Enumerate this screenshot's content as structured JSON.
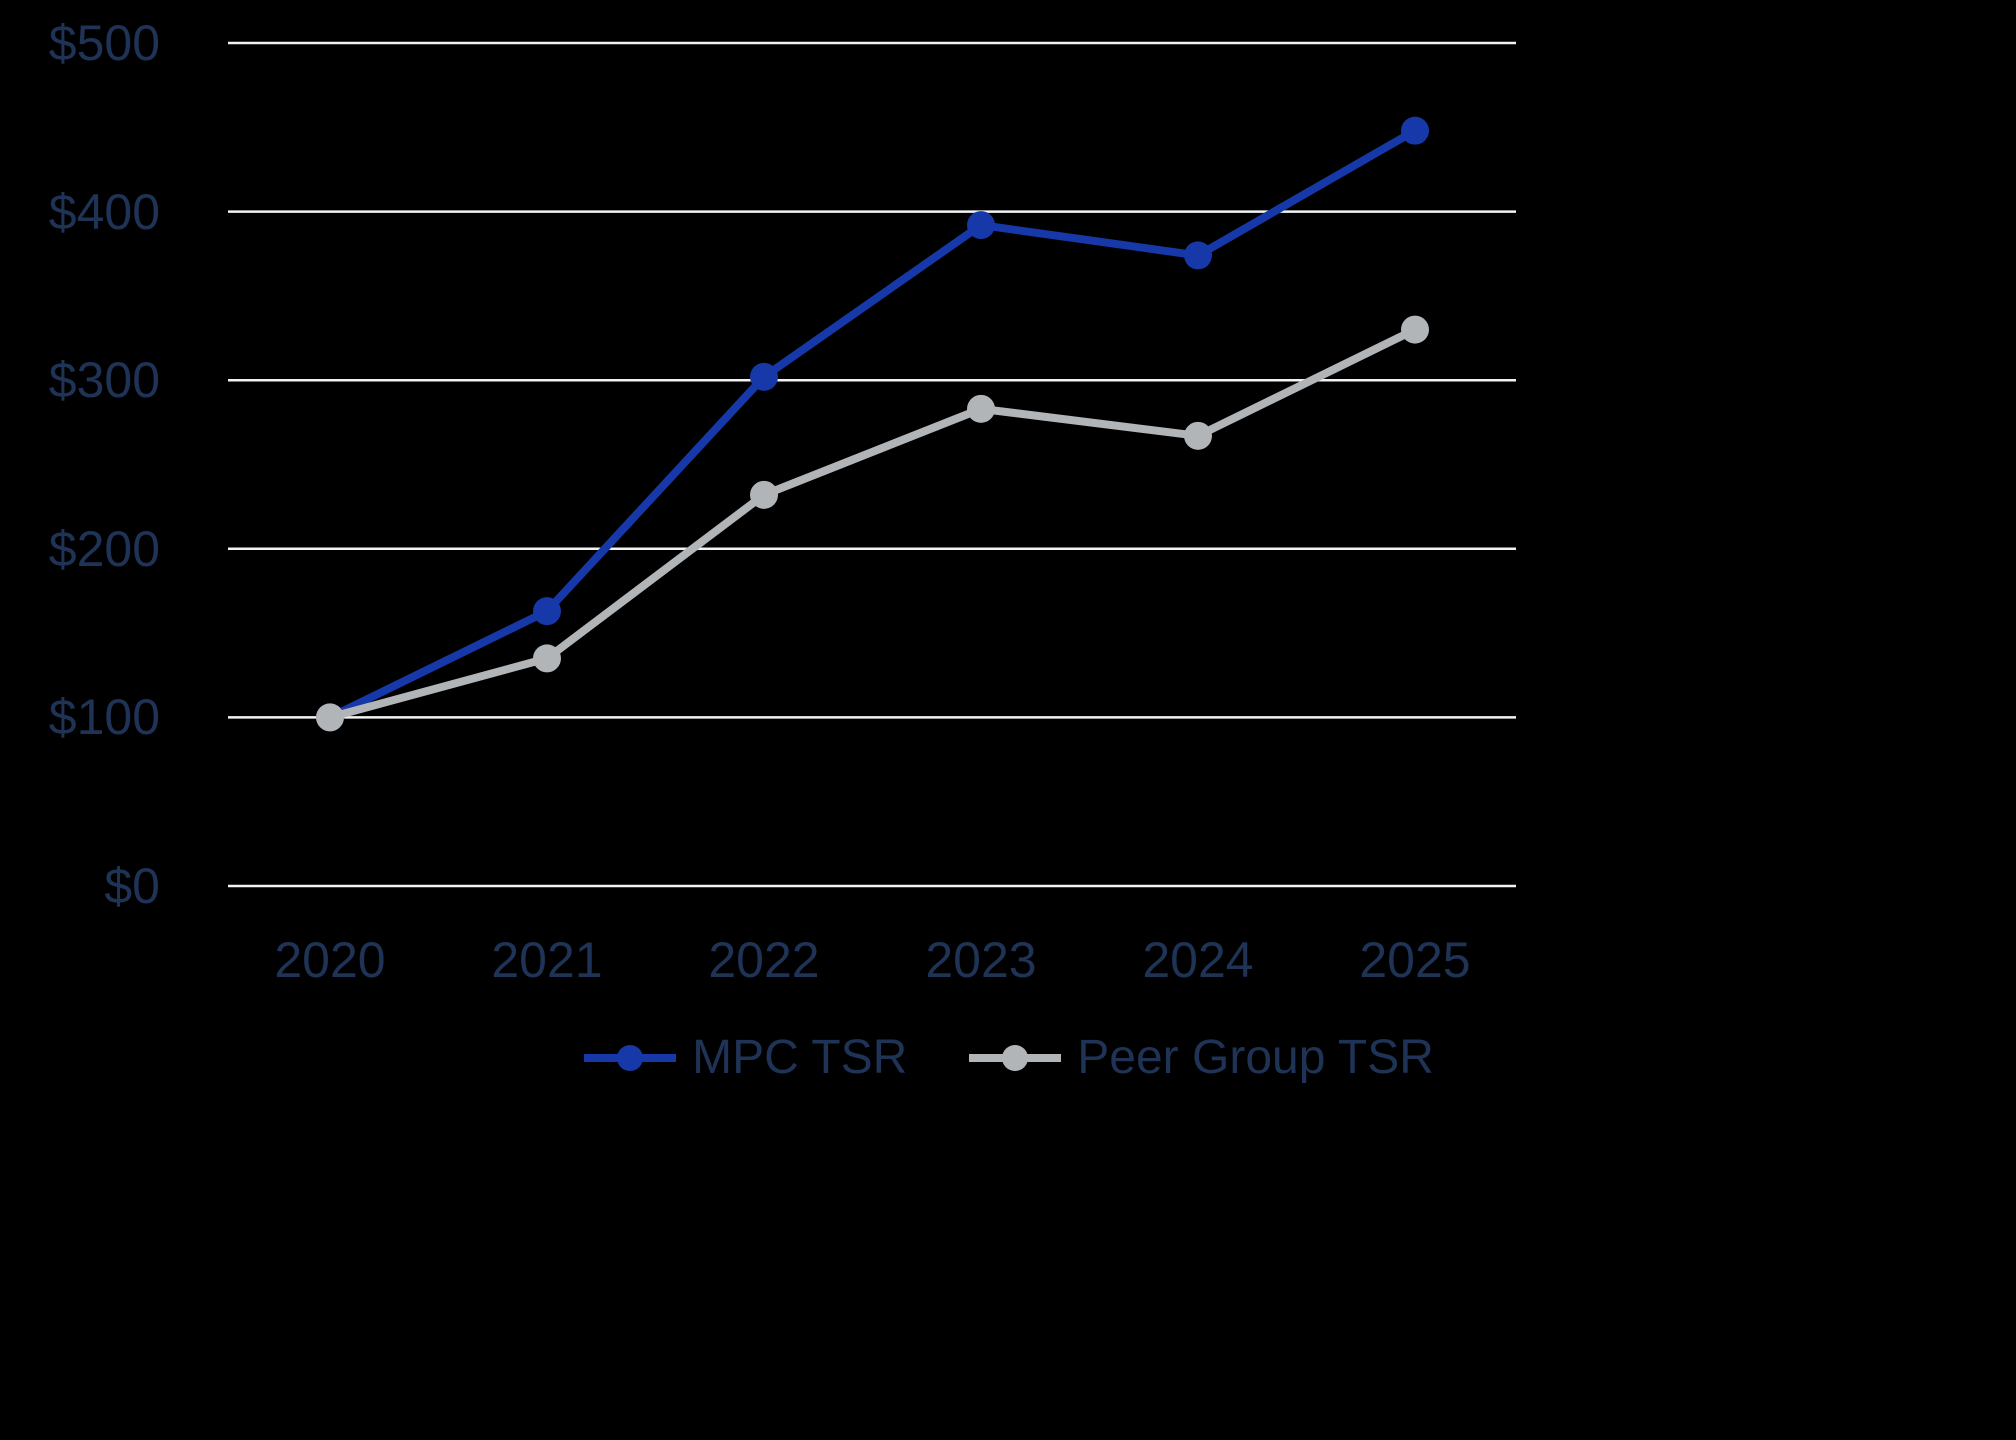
{
  "background_color": "#000000",
  "axis_label_color": "#1e3356",
  "gridline_color": "#f2f2f2",
  "chart_data": {
    "type": "line",
    "title": "",
    "xlabel": "",
    "ylabel": "",
    "x_categories": [
      "2020",
      "2021",
      "2022",
      "2023",
      "2024",
      "2025"
    ],
    "series": [
      {
        "name": "MPC TSR",
        "color": "#1638a8",
        "values": [
          100,
          163,
          302,
          392,
          374,
          448
        ]
      },
      {
        "name": "Peer Group TSR",
        "color": "#b2b5b7",
        "values": [
          100,
          135,
          232,
          283,
          267,
          330
        ]
      }
    ],
    "ylim": [
      0,
      500
    ],
    "yticks": [
      0,
      100,
      200,
      300,
      400,
      500
    ],
    "ytick_labels": [
      "$0",
      "$100",
      "$200",
      "$300",
      "$400",
      "$500"
    ],
    "grid": "horizontal",
    "legend_position": "bottom-center",
    "currency_prefix": "$"
  }
}
